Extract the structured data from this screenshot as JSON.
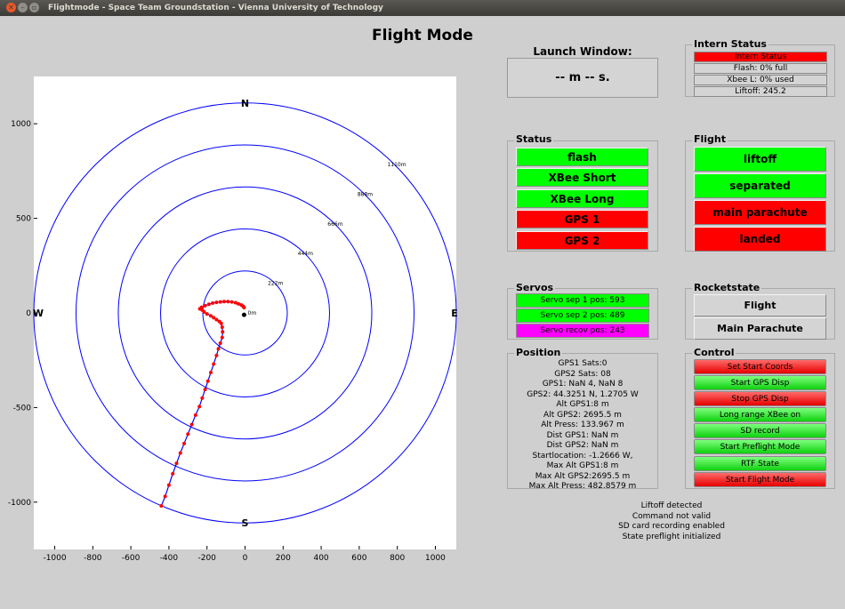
{
  "window": {
    "title": "Flightmode - Space Team Groundstation - Vienna University of Technology"
  },
  "app_title": "Flight Mode",
  "launch_window": {
    "title": "Launch Window:",
    "value": "-- m -- s."
  },
  "intern_status": {
    "title": "Intern Status",
    "rows": [
      "Intern Status",
      "Flash: 0% full",
      "Xbee L: 0% used",
      "Liftoff: 245.2"
    ]
  },
  "status": {
    "title": "Status",
    "items": [
      {
        "label": "flash",
        "state": "ok"
      },
      {
        "label": "XBee Short",
        "state": "ok"
      },
      {
        "label": "XBee Long",
        "state": "ok"
      },
      {
        "label": "GPS 1",
        "state": "error"
      },
      {
        "label": "GPS 2",
        "state": "error"
      }
    ]
  },
  "flight": {
    "title": "Flight",
    "items": [
      {
        "label": "liftoff",
        "state": "ok"
      },
      {
        "label": "separated",
        "state": "ok"
      },
      {
        "label": "main parachute",
        "state": "error"
      },
      {
        "label": "landed",
        "state": "error"
      }
    ]
  },
  "servos": {
    "title": "Servos",
    "items": [
      {
        "label": "Servo sep 1 pos: 593",
        "color": "green"
      },
      {
        "label": "Servo sep 2 pos: 489",
        "color": "green"
      },
      {
        "label": "Servo recov pos: 243",
        "color": "magenta"
      }
    ]
  },
  "rocketstate": {
    "title": "Rocketstate",
    "items": [
      "Flight",
      "Main Parachute"
    ]
  },
  "position": {
    "title": "Position",
    "lines": [
      "GPS1 Sats:0",
      "GPS2 Sats: 08",
      "GPS1: NaN 4, NaN 8",
      "GPS2: 44.3251 N, 1.2705 W",
      "Alt GPS1:8 m",
      "Alt GPS2: 2695.5 m",
      "Alt Press: 133.967 m",
      "Dist GPS1: NaN m",
      "Dist GPS2: NaN m",
      "Startlocation: -1.2666 W,",
      "Max Alt GPS1:8 m",
      "Max Alt GPS2:2695.5 m",
      "Max Alt Press: 482.8579 m"
    ]
  },
  "control": {
    "title": "Control",
    "buttons": [
      {
        "label": "Set Start Coords",
        "color": "red"
      },
      {
        "label": "Start GPS Disp",
        "color": "green"
      },
      {
        "label": "Stop GPS Disp",
        "color": "red"
      },
      {
        "label": "Long range XBee on",
        "color": "green"
      },
      {
        "label": "SD record",
        "color": "green"
      },
      {
        "label": "Start Preflight Mode",
        "color": "green"
      },
      {
        "label": "RTF State",
        "color": "green"
      },
      {
        "label": "Start Flight Mode",
        "color": "red"
      }
    ]
  },
  "log": {
    "lines": [
      "Liftoff detected",
      "Command not valid",
      "SD card recording enabled",
      "State preflight initialized"
    ]
  },
  "colors": {
    "ok": "#00ff00",
    "error": "#ff0000",
    "ring": "#0000ff",
    "track": "#ff0000",
    "track_line": "#0000ff"
  },
  "chart_data": {
    "type": "scatter",
    "title": "",
    "xlabel": "",
    "ylabel": "",
    "xlim": [
      -1110,
      1110
    ],
    "ylim": [
      -1250,
      1250
    ],
    "x_ticks": [
      -1000,
      -800,
      -600,
      -400,
      -200,
      0,
      200,
      400,
      600,
      800,
      1000
    ],
    "y_ticks": [
      1000,
      500,
      0,
      -500,
      -1000
    ],
    "rings": [
      222,
      444,
      666,
      888,
      1110
    ],
    "ring_labels": [
      "222m",
      "444m",
      "666m",
      "888m",
      "1110m"
    ],
    "center_label": "0m",
    "compass": {
      "N": "N",
      "S": "S",
      "E": "E",
      "W": "W"
    },
    "track": {
      "x": [
        -440,
        -420,
        -400,
        -380,
        -360,
        -340,
        -320,
        -300,
        -280,
        -260,
        -240,
        -225,
        -210,
        -195,
        -180,
        -165,
        -150,
        -140,
        -130,
        -120,
        -118,
        -120,
        -125,
        -135,
        -150,
        -165,
        -180,
        -200,
        -215,
        -225,
        -238,
        -228,
        -210,
        -190,
        -170,
        -150,
        -130,
        -110,
        -90,
        -70,
        -50,
        -35,
        -20,
        -10,
        -5
      ],
      "y": [
        -1020,
        -970,
        -910,
        -850,
        -795,
        -740,
        -690,
        -640,
        -590,
        -540,
        -495,
        -450,
        -405,
        -360,
        -315,
        -270,
        -225,
        -190,
        -160,
        -130,
        -100,
        -75,
        -55,
        -45,
        -35,
        -25,
        -15,
        -5,
        5,
        15,
        22,
        30,
        38,
        46,
        52,
        56,
        58,
        60,
        60,
        58,
        54,
        48,
        42,
        35,
        28
      ]
    },
    "marker": {
      "x": -5,
      "y": -10
    }
  }
}
